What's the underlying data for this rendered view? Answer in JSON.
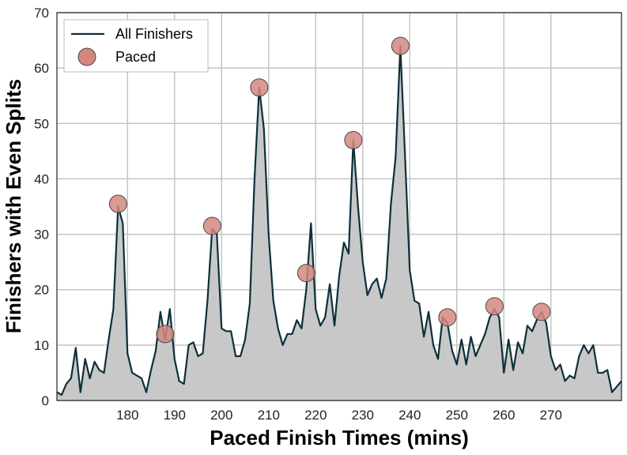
{
  "chart_data": {
    "type": "line",
    "xlabel": "Paced Finish Times (mins)",
    "ylabel": "Finishers with Even Splits",
    "xlim": [
      165,
      285
    ],
    "ylim": [
      0,
      70
    ],
    "xticks": [
      180,
      190,
      200,
      210,
      220,
      230,
      240,
      250,
      260,
      270
    ],
    "yticks": [
      0,
      10,
      20,
      30,
      40,
      50,
      60,
      70
    ],
    "grid": true,
    "legend_position": "top-left",
    "series": [
      {
        "name": "All Finishers",
        "style": "line with gray fill",
        "line_color": "#0d2f3a",
        "fill_color": "#c8c8c8",
        "x": [
          165,
          166,
          167,
          168,
          169,
          170,
          171,
          172,
          173,
          174,
          175,
          176,
          177,
          178,
          179,
          180,
          181,
          182,
          183,
          184,
          185,
          186,
          187,
          188,
          189,
          190,
          191,
          192,
          193,
          194,
          195,
          196,
          197,
          198,
          199,
          200,
          201,
          202,
          203,
          204,
          205,
          206,
          207,
          208,
          209,
          210,
          211,
          212,
          213,
          214,
          215,
          216,
          217,
          218,
          219,
          220,
          221,
          222,
          223,
          224,
          225,
          226,
          227,
          228,
          229,
          230,
          231,
          232,
          233,
          234,
          235,
          236,
          237,
          238,
          239,
          240,
          241,
          242,
          243,
          244,
          245,
          246,
          247,
          248,
          249,
          250,
          251,
          252,
          253,
          254,
          255,
          256,
          257,
          258,
          259,
          260,
          261,
          262,
          263,
          264,
          265,
          266,
          267,
          268,
          269,
          270,
          271,
          272,
          273,
          274,
          275,
          276,
          277,
          278,
          279,
          280,
          281,
          282,
          283,
          284,
          285
        ],
        "values": [
          1.5,
          1,
          3,
          4,
          9.5,
          1.5,
          7.5,
          4,
          7,
          5.5,
          5,
          11,
          16.5,
          35,
          32,
          8.5,
          5,
          4.5,
          4,
          1.5,
          5.5,
          9,
          16,
          11,
          16.5,
          7.5,
          3.5,
          3,
          10,
          10.5,
          8,
          8.5,
          18,
          31,
          30,
          13,
          12.5,
          12.5,
          8,
          8,
          11,
          17.5,
          40,
          56.5,
          49,
          30,
          18,
          13,
          10,
          12,
          12,
          14.5,
          13,
          20,
          32,
          16.5,
          13.5,
          15,
          21,
          13.5,
          22.5,
          28.5,
          26.5,
          47,
          35,
          25,
          19,
          21,
          22,
          18.5,
          22,
          35.5,
          44,
          64,
          44,
          23.5,
          18,
          17.5,
          11.5,
          16,
          10,
          7.5,
          15,
          14,
          9,
          6.5,
          11,
          6.5,
          11.5,
          8,
          10,
          12,
          15,
          16.5,
          15,
          5,
          11,
          5.5,
          10.5,
          8.5,
          13.5,
          12.5,
          14.5,
          16,
          14,
          8,
          5.5,
          6.5,
          3.5,
          4.5,
          4,
          8,
          10,
          8.5,
          10,
          5,
          5,
          5.5,
          1.5,
          2.5,
          3.5
        ]
      },
      {
        "name": "Paced",
        "style": "circle markers",
        "marker_color": "#d4877f",
        "x": [
          178,
          188,
          198,
          208,
          218,
          228,
          238,
          248,
          258,
          268
        ],
        "values": [
          35.5,
          12,
          31.5,
          56.5,
          23,
          47,
          64,
          15,
          17,
          16
        ]
      }
    ]
  }
}
